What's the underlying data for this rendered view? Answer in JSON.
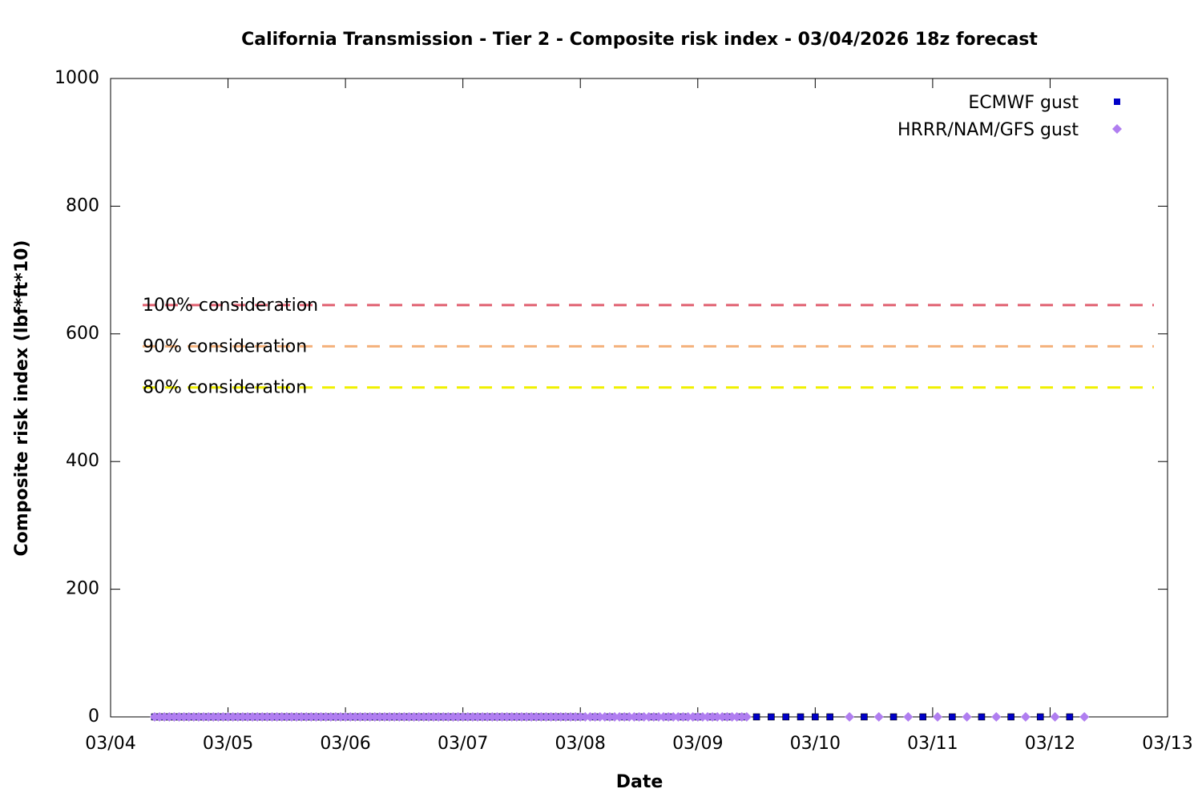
{
  "chart_data": {
    "type": "scatter",
    "title": "California Transmission - Tier 2 - Composite risk index - 03/04/2026 18z forecast",
    "xlabel": "Date",
    "ylabel": "Composite risk index (lbf*ft*10)",
    "xlim": [
      0,
      216
    ],
    "xticks": [
      {
        "value": 0,
        "label": "03/04"
      },
      {
        "value": 24,
        "label": "03/05"
      },
      {
        "value": 48,
        "label": "03/06"
      },
      {
        "value": 72,
        "label": "03/07"
      },
      {
        "value": 96,
        "label": "03/08"
      },
      {
        "value": 120,
        "label": "03/09"
      },
      {
        "value": 144,
        "label": "03/10"
      },
      {
        "value": 168,
        "label": "03/11"
      },
      {
        "value": 192,
        "label": "03/12"
      },
      {
        "value": 216,
        "label": "03/13"
      }
    ],
    "ylim": [
      0,
      1000
    ],
    "yticks": [
      0,
      200,
      400,
      600,
      800,
      1000
    ],
    "legend": "top-right",
    "thresholds": [
      {
        "label": "100% consideration",
        "value": 645,
        "color": "#e06070"
      },
      {
        "label": "90% consideration",
        "value": 580.5,
        "color": "#f4b07a"
      },
      {
        "label": "80% consideration",
        "value": 516,
        "color": "#f0f000"
      }
    ],
    "series": [
      {
        "name": "ECMWF gust",
        "color": "#0000c8",
        "marker": "square",
        "x": [
          9,
          10,
          11,
          12,
          13,
          14,
          15,
          16,
          17,
          18,
          19,
          20,
          21,
          22,
          23,
          24,
          25,
          26,
          27,
          28,
          29,
          30,
          31,
          32,
          33,
          34,
          35,
          36,
          37,
          38,
          39,
          40,
          41,
          42,
          43,
          44,
          45,
          46,
          47,
          48,
          49,
          50,
          51,
          52,
          53,
          54,
          55,
          56,
          57,
          58,
          59,
          60,
          61,
          62,
          63,
          64,
          65,
          66,
          67,
          68,
          69,
          70,
          71,
          72,
          73,
          74,
          75,
          76,
          77,
          78,
          79,
          80,
          81,
          82,
          83,
          84,
          85,
          86,
          87,
          88,
          89,
          90,
          91,
          92,
          93,
          94,
          95,
          96,
          99,
          102,
          105,
          108,
          111,
          114,
          117,
          120,
          123,
          126,
          129,
          132,
          135,
          138,
          141,
          144,
          147,
          154,
          160,
          166,
          172,
          178,
          184,
          190,
          196
        ],
        "values": [
          0,
          0,
          0,
          0,
          0,
          0,
          0,
          0,
          0,
          0,
          0,
          0,
          0,
          0,
          0,
          0,
          0,
          0,
          0,
          0,
          0,
          0,
          0,
          0,
          0,
          0,
          0,
          0,
          0,
          0,
          0,
          0,
          0,
          0,
          0,
          0,
          0,
          0,
          0,
          0,
          0,
          0,
          0,
          0,
          0,
          0,
          0,
          0,
          0,
          0,
          0,
          0,
          0,
          0,
          0,
          0,
          0,
          0,
          0,
          0,
          0,
          0,
          0,
          0,
          0,
          0,
          0,
          0,
          0,
          0,
          0,
          0,
          0,
          0,
          0,
          0,
          0,
          0,
          0,
          0,
          0,
          0,
          0,
          0,
          0,
          0,
          0,
          0,
          0,
          0,
          0,
          0,
          0,
          0,
          0,
          0,
          0,
          0,
          0,
          0,
          0,
          0,
          0,
          0,
          0,
          0,
          0,
          0,
          0,
          0,
          0,
          0,
          0
        ]
      },
      {
        "name": "HRRR/NAM/GFS gust",
        "color": "#b07ef0",
        "marker": "diamond",
        "x": [
          9,
          10,
          11,
          12,
          13,
          14,
          15,
          16,
          17,
          18,
          19,
          20,
          21,
          22,
          23,
          24,
          25,
          26,
          27,
          28,
          29,
          30,
          31,
          32,
          33,
          34,
          35,
          36,
          37,
          38,
          39,
          40,
          41,
          42,
          43,
          44,
          45,
          46,
          47,
          48,
          49,
          50,
          51,
          52,
          53,
          54,
          55,
          56,
          57,
          58,
          59,
          60,
          61,
          62,
          63,
          64,
          65,
          66,
          67,
          68,
          69,
          70,
          71,
          72,
          73,
          74,
          75,
          76,
          77,
          78,
          79,
          80,
          81,
          82,
          83,
          84,
          85,
          86,
          87,
          88,
          89,
          90,
          91,
          92,
          93,
          94,
          95,
          96,
          97,
          98,
          99,
          100,
          101,
          102,
          103,
          104,
          105,
          106,
          107,
          108,
          109,
          110,
          111,
          112,
          113,
          114,
          115,
          116,
          117,
          118,
          119,
          120,
          121,
          122,
          123,
          124,
          125,
          126,
          127,
          128,
          129,
          130,
          151,
          157,
          163,
          169,
          175,
          181,
          187,
          193,
          199
        ],
        "values": [
          0,
          0,
          0,
          0,
          0,
          0,
          0,
          0,
          0,
          0,
          0,
          0,
          0,
          0,
          0,
          0,
          0,
          0,
          0,
          0,
          0,
          0,
          0,
          0,
          0,
          0,
          0,
          0,
          0,
          0,
          0,
          0,
          0,
          0,
          0,
          0,
          0,
          0,
          0,
          0,
          0,
          0,
          0,
          0,
          0,
          0,
          0,
          0,
          0,
          0,
          0,
          0,
          0,
          0,
          0,
          0,
          0,
          0,
          0,
          0,
          0,
          0,
          0,
          0,
          0,
          0,
          0,
          0,
          0,
          0,
          0,
          0,
          0,
          0,
          0,
          0,
          0,
          0,
          0,
          0,
          0,
          0,
          0,
          0,
          0,
          0,
          0,
          0,
          0,
          0,
          0,
          0,
          0,
          0,
          0,
          0,
          0,
          0,
          0,
          0,
          0,
          0,
          0,
          0,
          0,
          0,
          0,
          0,
          0,
          0,
          0,
          0,
          0,
          0,
          0,
          0,
          0,
          0,
          0,
          0,
          0,
          0,
          0,
          0,
          0,
          0,
          0,
          0,
          0,
          0,
          0
        ]
      }
    ]
  }
}
